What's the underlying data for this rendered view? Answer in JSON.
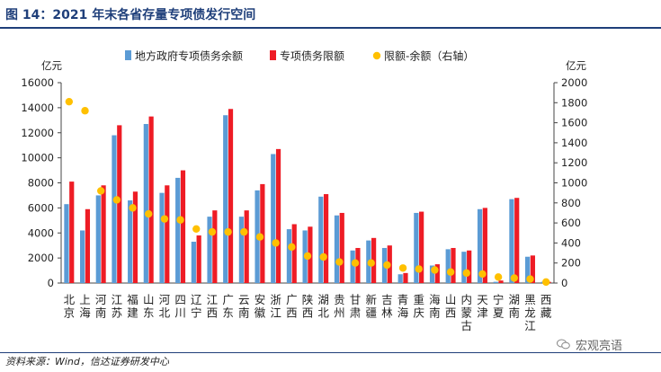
{
  "figure": {
    "title": "图 14：2021 年末各省存量专项债发行空间",
    "source": "资料来源：Wind，信达证券研发中心",
    "watermark": "宏观亮语"
  },
  "colors": {
    "title_blue": "#1f3f7a",
    "series_balance": "#5b9bd5",
    "series_limit": "#ee1c25",
    "series_space": "#ffc000"
  },
  "chart_data": {
    "type": "bar",
    "categories": [
      "北\n京",
      "上\n海",
      "河\n南",
      "江\n苏",
      "福\n建",
      "山\n东",
      "河\n北",
      "四\n川",
      "辽\n宁",
      "江\n西",
      "广\n东",
      "云\n南",
      "安\n徽",
      "浙\n江",
      "广\n西",
      "陕\n西",
      "湖\n北",
      "贵\n州",
      "甘\n肃",
      "新\n疆",
      "吉\n林",
      "青\n海",
      "重\n庆",
      "海\n南",
      "山\n西",
      "内\n蒙\n古",
      "天\n津",
      "宁\n夏",
      "湖\n南",
      "黑\n龙\n江",
      "西\n藏"
    ],
    "series": [
      {
        "name": "地方政府专项债务余额",
        "axis": "left",
        "mark": "bar",
        "values": [
          6300,
          4200,
          7000,
          11800,
          6600,
          12700,
          7200,
          8400,
          3300,
          5300,
          13400,
          5300,
          7400,
          10300,
          4300,
          4200,
          6900,
          5400,
          2600,
          3400,
          2800,
          700,
          5600,
          1400,
          2700,
          2500,
          5900,
          100,
          6700,
          2100,
          100
        ]
      },
      {
        "name": "专项债务限额",
        "axis": "left",
        "mark": "bar",
        "values": [
          8100,
          5900,
          7800,
          12600,
          7300,
          13300,
          7800,
          9000,
          3800,
          5800,
          13900,
          5800,
          7900,
          10700,
          4700,
          4500,
          7100,
          5600,
          2800,
          3600,
          3000,
          800,
          5700,
          1500,
          2800,
          2600,
          6000,
          200,
          6800,
          2200,
          100
        ]
      },
      {
        "name": "限额-余额（右轴）",
        "axis": "right",
        "mark": "dot",
        "values": [
          1810,
          1720,
          920,
          830,
          750,
          690,
          640,
          630,
          540,
          510,
          510,
          510,
          460,
          400,
          360,
          270,
          260,
          210,
          200,
          200,
          180,
          150,
          140,
          130,
          110,
          100,
          90,
          60,
          50,
          40,
          10
        ]
      }
    ],
    "y_left": {
      "unit": "亿元",
      "min": 0,
      "max": 16000,
      "step": 2000
    },
    "y_right": {
      "unit": "亿元",
      "min": 0,
      "max": 2000,
      "step": 200
    },
    "legend_position": "top",
    "grid": false
  }
}
